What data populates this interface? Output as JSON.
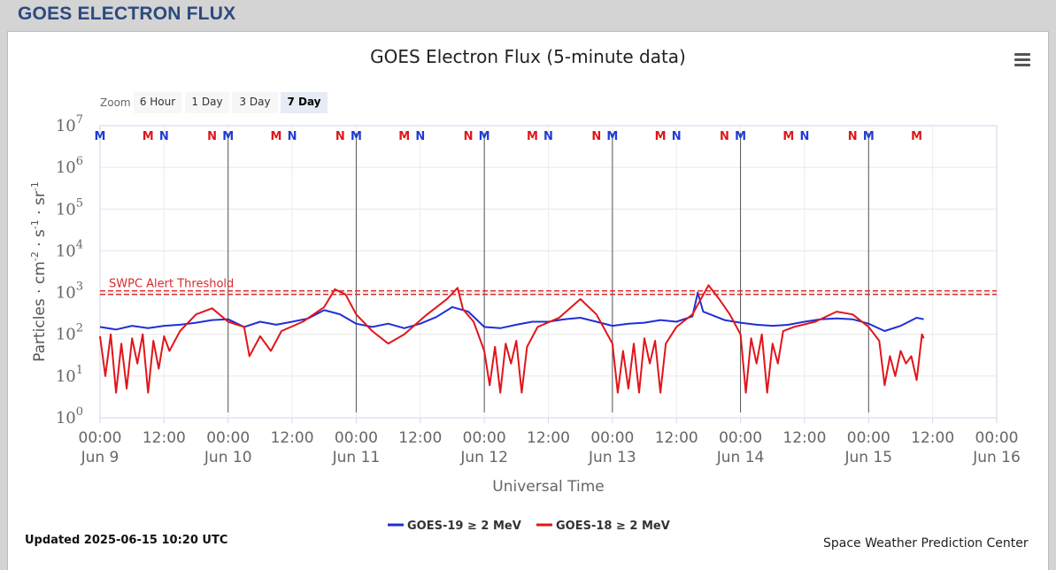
{
  "page": {
    "header_title": "GOES ELECTRON FLUX"
  },
  "menu": {
    "icon": "hamburger-menu-icon"
  },
  "zoom": {
    "label": "Zoom",
    "buttons": [
      "6 Hour",
      "1 Day",
      "3 Day",
      "7 Day"
    ],
    "active": "7 Day"
  },
  "footer": {
    "updated": "Updated 2025-06-15 10:20 UTC",
    "credit": "Space Weather Prediction Center"
  },
  "chart_data": {
    "type": "line",
    "title": "GOES Electron Flux (5-minute data)",
    "xlabel": "Universal Time",
    "ylabel_parts": [
      "Particles · cm",
      "-2",
      " · s",
      "-1",
      " · sr",
      "-1"
    ],
    "yscale": "log",
    "ylim": [
      1,
      10000000
    ],
    "y_ticks": [
      {
        "base": "10",
        "exp": "0"
      },
      {
        "base": "10",
        "exp": "1"
      },
      {
        "base": "10",
        "exp": "2"
      },
      {
        "base": "10",
        "exp": "3"
      },
      {
        "base": "10",
        "exp": "4"
      },
      {
        "base": "10",
        "exp": "5"
      },
      {
        "base": "10",
        "exp": "6"
      },
      {
        "base": "10",
        "exp": "7"
      }
    ],
    "xlim": [
      "2025-06-09 00:00",
      "2025-06-16 00:00"
    ],
    "x_ticks": [
      {
        "time": "00:00",
        "date": "Jun 9"
      },
      {
        "time": "12:00",
        "date": ""
      },
      {
        "time": "00:00",
        "date": "Jun 10"
      },
      {
        "time": "12:00",
        "date": ""
      },
      {
        "time": "00:00",
        "date": "Jun 11"
      },
      {
        "time": "12:00",
        "date": ""
      },
      {
        "time": "00:00",
        "date": "Jun 12"
      },
      {
        "time": "12:00",
        "date": ""
      },
      {
        "time": "00:00",
        "date": "Jun 13"
      },
      {
        "time": "12:00",
        "date": ""
      },
      {
        "time": "00:00",
        "date": "Jun 14"
      },
      {
        "time": "12:00",
        "date": ""
      },
      {
        "time": "00:00",
        "date": "Jun 15"
      },
      {
        "time": "12:00",
        "date": ""
      },
      {
        "time": "00:00",
        "date": "Jun 16"
      }
    ],
    "grid": true,
    "legend_position": "bottom-center",
    "threshold": {
      "label": "SWPC Alert Threshold",
      "value": 1000,
      "color": "#d9292b"
    },
    "current_time": "2025-06-15 00:00",
    "markers": [
      {
        "t": "2025-06-09 00:00",
        "label": "M",
        "color": "#1f3bd6"
      },
      {
        "t": "2025-06-09 09:00",
        "label": "M",
        "color": "#e1151b"
      },
      {
        "t": "2025-06-09 12:00",
        "label": "N",
        "color": "#1f3bd6"
      },
      {
        "t": "2025-06-09 21:00",
        "label": "N",
        "color": "#e1151b"
      },
      {
        "t": "2025-06-10 00:00",
        "label": "M",
        "color": "#1f3bd6"
      },
      {
        "t": "2025-06-10 09:00",
        "label": "M",
        "color": "#e1151b"
      },
      {
        "t": "2025-06-10 12:00",
        "label": "N",
        "color": "#1f3bd6"
      },
      {
        "t": "2025-06-10 21:00",
        "label": "N",
        "color": "#e1151b"
      },
      {
        "t": "2025-06-11 00:00",
        "label": "M",
        "color": "#1f3bd6"
      },
      {
        "t": "2025-06-11 09:00",
        "label": "M",
        "color": "#e1151b"
      },
      {
        "t": "2025-06-11 12:00",
        "label": "N",
        "color": "#1f3bd6"
      },
      {
        "t": "2025-06-11 21:00",
        "label": "N",
        "color": "#e1151b"
      },
      {
        "t": "2025-06-12 00:00",
        "label": "M",
        "color": "#1f3bd6"
      },
      {
        "t": "2025-06-12 09:00",
        "label": "M",
        "color": "#e1151b"
      },
      {
        "t": "2025-06-12 12:00",
        "label": "N",
        "color": "#1f3bd6"
      },
      {
        "t": "2025-06-12 21:00",
        "label": "N",
        "color": "#e1151b"
      },
      {
        "t": "2025-06-13 00:00",
        "label": "M",
        "color": "#1f3bd6"
      },
      {
        "t": "2025-06-13 09:00",
        "label": "M",
        "color": "#e1151b"
      },
      {
        "t": "2025-06-13 12:00",
        "label": "N",
        "color": "#1f3bd6"
      },
      {
        "t": "2025-06-13 21:00",
        "label": "N",
        "color": "#e1151b"
      },
      {
        "t": "2025-06-14 00:00",
        "label": "M",
        "color": "#1f3bd6"
      },
      {
        "t": "2025-06-14 09:00",
        "label": "M",
        "color": "#e1151b"
      },
      {
        "t": "2025-06-14 12:00",
        "label": "N",
        "color": "#1f3bd6"
      },
      {
        "t": "2025-06-14 21:00",
        "label": "N",
        "color": "#e1151b"
      },
      {
        "t": "2025-06-15 00:00",
        "label": "M",
        "color": "#1f3bd6"
      },
      {
        "t": "2025-06-15 09:00",
        "label": "M",
        "color": "#e1151b"
      }
    ],
    "series": [
      {
        "name": "GOES-19 ≥ 2 MeV",
        "color": "#1f2fd6",
        "points": [
          [
            "2025-06-09 00:00",
            150
          ],
          [
            "2025-06-09 03:00",
            130
          ],
          [
            "2025-06-09 06:00",
            160
          ],
          [
            "2025-06-09 09:00",
            140
          ],
          [
            "2025-06-09 12:00",
            160
          ],
          [
            "2025-06-09 15:00",
            170
          ],
          [
            "2025-06-09 18:00",
            190
          ],
          [
            "2025-06-09 21:00",
            220
          ],
          [
            "2025-06-10 00:00",
            230
          ],
          [
            "2025-06-10 03:00",
            150
          ],
          [
            "2025-06-10 06:00",
            200
          ],
          [
            "2025-06-10 09:00",
            170
          ],
          [
            "2025-06-10 12:00",
            200
          ],
          [
            "2025-06-10 15:00",
            240
          ],
          [
            "2025-06-10 18:00",
            380
          ],
          [
            "2025-06-10 21:00",
            300
          ],
          [
            "2025-06-11 00:00",
            180
          ],
          [
            "2025-06-11 03:00",
            150
          ],
          [
            "2025-06-11 06:00",
            180
          ],
          [
            "2025-06-11 09:00",
            140
          ],
          [
            "2025-06-11 12:00",
            180
          ],
          [
            "2025-06-11 15:00",
            260
          ],
          [
            "2025-06-11 18:00",
            450
          ],
          [
            "2025-06-11 21:00",
            350
          ],
          [
            "2025-06-12 00:00",
            150
          ],
          [
            "2025-06-12 03:00",
            140
          ],
          [
            "2025-06-12 06:00",
            170
          ],
          [
            "2025-06-12 09:00",
            200
          ],
          [
            "2025-06-12 12:00",
            200
          ],
          [
            "2025-06-12 15:00",
            230
          ],
          [
            "2025-06-12 18:00",
            250
          ],
          [
            "2025-06-12 21:00",
            200
          ],
          [
            "2025-06-13 00:00",
            160
          ],
          [
            "2025-06-13 03:00",
            180
          ],
          [
            "2025-06-13 06:00",
            190
          ],
          [
            "2025-06-13 09:00",
            220
          ],
          [
            "2025-06-13 12:00",
            200
          ],
          [
            "2025-06-13 15:00",
            270
          ],
          [
            "2025-06-13 16:00",
            1000
          ],
          [
            "2025-06-13 17:00",
            350
          ],
          [
            "2025-06-13 21:00",
            220
          ],
          [
            "2025-06-14 00:00",
            190
          ],
          [
            "2025-06-14 03:00",
            170
          ],
          [
            "2025-06-14 06:00",
            160
          ],
          [
            "2025-06-14 09:00",
            170
          ],
          [
            "2025-06-14 12:00",
            200
          ],
          [
            "2025-06-14 15:00",
            230
          ],
          [
            "2025-06-14 18:00",
            240
          ],
          [
            "2025-06-14 21:00",
            230
          ],
          [
            "2025-06-15 00:00",
            180
          ],
          [
            "2025-06-15 03:00",
            120
          ],
          [
            "2025-06-15 06:00",
            160
          ],
          [
            "2025-06-15 09:00",
            250
          ],
          [
            "2025-06-15 10:20",
            230
          ]
        ]
      },
      {
        "name": "GOES-18 ≥ 2 MeV",
        "color": "#e1151b",
        "points": [
          [
            "2025-06-09 00:00",
            90
          ],
          [
            "2025-06-09 01:00",
            10
          ],
          [
            "2025-06-09 02:00",
            100
          ],
          [
            "2025-06-09 03:00",
            4
          ],
          [
            "2025-06-09 04:00",
            60
          ],
          [
            "2025-06-09 05:00",
            5
          ],
          [
            "2025-06-09 06:00",
            80
          ],
          [
            "2025-06-09 07:00",
            20
          ],
          [
            "2025-06-09 08:00",
            100
          ],
          [
            "2025-06-09 09:00",
            4
          ],
          [
            "2025-06-09 10:00",
            70
          ],
          [
            "2025-06-09 11:00",
            15
          ],
          [
            "2025-06-09 12:00",
            90
          ],
          [
            "2025-06-09 13:00",
            40
          ],
          [
            "2025-06-09 15:00",
            120
          ],
          [
            "2025-06-09 18:00",
            300
          ],
          [
            "2025-06-09 21:00",
            420
          ],
          [
            "2025-06-10 00:00",
            200
          ],
          [
            "2025-06-10 03:00",
            150
          ],
          [
            "2025-06-10 04:00",
            30
          ],
          [
            "2025-06-10 06:00",
            90
          ],
          [
            "2025-06-10 08:00",
            40
          ],
          [
            "2025-06-10 10:00",
            120
          ],
          [
            "2025-06-10 14:00",
            200
          ],
          [
            "2025-06-10 18:00",
            450
          ],
          [
            "2025-06-10 20:00",
            1200
          ],
          [
            "2025-06-10 22:00",
            900
          ],
          [
            "2025-06-11 00:00",
            300
          ],
          [
            "2025-06-11 03:00",
            120
          ],
          [
            "2025-06-11 06:00",
            60
          ],
          [
            "2025-06-11 09:00",
            100
          ],
          [
            "2025-06-11 13:00",
            280
          ],
          [
            "2025-06-11 17:00",
            700
          ],
          [
            "2025-06-11 19:00",
            1300
          ],
          [
            "2025-06-11 20:00",
            400
          ],
          [
            "2025-06-11 22:00",
            200
          ],
          [
            "2025-06-12 00:00",
            40
          ],
          [
            "2025-06-12 01:00",
            6
          ],
          [
            "2025-06-12 02:00",
            50
          ],
          [
            "2025-06-12 03:00",
            4
          ],
          [
            "2025-06-12 04:00",
            60
          ],
          [
            "2025-06-12 05:00",
            20
          ],
          [
            "2025-06-12 06:00",
            70
          ],
          [
            "2025-06-12 07:00",
            4
          ],
          [
            "2025-06-12 08:00",
            50
          ],
          [
            "2025-06-12 10:00",
            150
          ],
          [
            "2025-06-12 14:00",
            250
          ],
          [
            "2025-06-12 18:00",
            700
          ],
          [
            "2025-06-12 21:00",
            300
          ],
          [
            "2025-06-13 00:00",
            60
          ],
          [
            "2025-06-13 01:00",
            4
          ],
          [
            "2025-06-13 02:00",
            40
          ],
          [
            "2025-06-13 03:00",
            5
          ],
          [
            "2025-06-13 04:00",
            60
          ],
          [
            "2025-06-13 05:00",
            4
          ],
          [
            "2025-06-13 06:00",
            80
          ],
          [
            "2025-06-13 07:00",
            20
          ],
          [
            "2025-06-13 08:00",
            70
          ],
          [
            "2025-06-13 09:00",
            4
          ],
          [
            "2025-06-13 10:00",
            60
          ],
          [
            "2025-06-13 12:00",
            150
          ],
          [
            "2025-06-13 15:00",
            300
          ],
          [
            "2025-06-13 18:00",
            1500
          ],
          [
            "2025-06-13 20:00",
            700
          ],
          [
            "2025-06-13 22:00",
            300
          ],
          [
            "2025-06-14 00:00",
            100
          ],
          [
            "2025-06-14 01:00",
            4
          ],
          [
            "2025-06-14 02:00",
            80
          ],
          [
            "2025-06-14 03:00",
            20
          ],
          [
            "2025-06-14 04:00",
            100
          ],
          [
            "2025-06-14 05:00",
            4
          ],
          [
            "2025-06-14 06:00",
            60
          ],
          [
            "2025-06-14 07:00",
            20
          ],
          [
            "2025-06-14 08:00",
            120
          ],
          [
            "2025-06-14 10:00",
            150
          ],
          [
            "2025-06-14 14:00",
            200
          ],
          [
            "2025-06-14 18:00",
            350
          ],
          [
            "2025-06-14 21:00",
            300
          ],
          [
            "2025-06-15 00:00",
            150
          ],
          [
            "2025-06-15 02:00",
            70
          ],
          [
            "2025-06-15 03:00",
            6
          ],
          [
            "2025-06-15 04:00",
            30
          ],
          [
            "2025-06-15 05:00",
            10
          ],
          [
            "2025-06-15 06:00",
            40
          ],
          [
            "2025-06-15 07:00",
            20
          ],
          [
            "2025-06-15 08:00",
            30
          ],
          [
            "2025-06-15 09:00",
            8
          ],
          [
            "2025-06-15 10:00",
            100
          ],
          [
            "2025-06-15 10:20",
            80
          ]
        ]
      }
    ]
  }
}
